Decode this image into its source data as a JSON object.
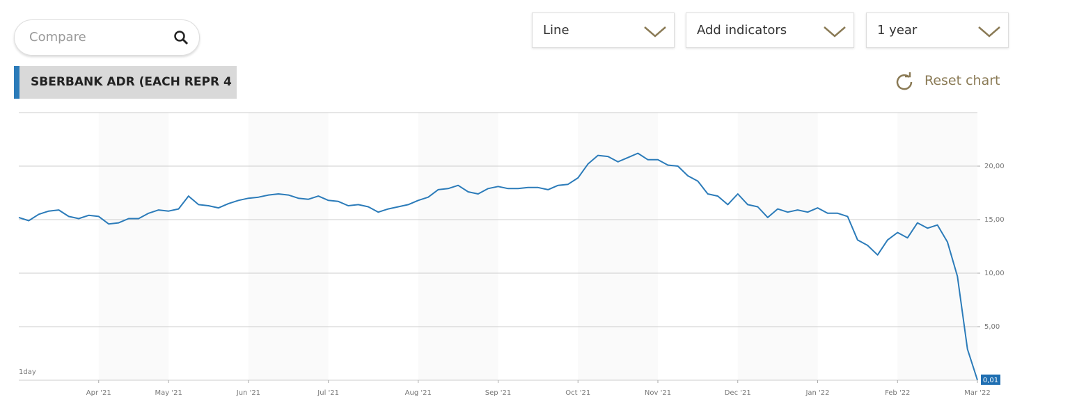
{
  "toolbar": {
    "compare_placeholder": "Compare",
    "dropdowns": [
      "Line",
      "Add indicators",
      "1 year"
    ]
  },
  "instrument_tab": "SBERBANK ADR (EACH REPR 4",
  "reset_label": "Reset chart",
  "chart_data": {
    "type": "line",
    "interval_label": "1day",
    "color": "#2b7bb9",
    "categories": [
      null,
      null,
      null,
      null,
      null,
      null,
      null,
      null,
      "Apr '21",
      null,
      null,
      null,
      null,
      null,
      null,
      "May '21",
      null,
      null,
      null,
      null,
      null,
      null,
      null,
      "Jun '21",
      null,
      null,
      null,
      null,
      null,
      null,
      null,
      "Jul '21",
      null,
      null,
      null,
      null,
      null,
      null,
      null,
      null,
      "Aug '21",
      null,
      null,
      null,
      null,
      null,
      null,
      null,
      "Sep '21",
      null,
      null,
      null,
      null,
      null,
      null,
      null,
      "Oct '21",
      null,
      null,
      null,
      null,
      null,
      null,
      null,
      "Nov '21",
      null,
      null,
      null,
      null,
      null,
      null,
      null,
      "Dec '21",
      null,
      null,
      null,
      null,
      null,
      null,
      null,
      "Jan '22",
      null,
      null,
      null,
      null,
      null,
      null,
      null,
      "Feb '22",
      null,
      null,
      null,
      null,
      null,
      null,
      null,
      "Mar '22"
    ],
    "values": [
      15.2,
      14.9,
      15.5,
      15.8,
      15.9,
      15.3,
      15.1,
      15.4,
      15.3,
      14.6,
      14.7,
      15.1,
      15.1,
      15.6,
      15.9,
      15.8,
      16.0,
      17.2,
      16.4,
      16.3,
      16.1,
      16.5,
      16.8,
      17.0,
      17.1,
      17.3,
      17.4,
      17.3,
      17.0,
      16.9,
      17.2,
      16.8,
      16.7,
      16.3,
      16.4,
      16.2,
      15.7,
      16.0,
      16.2,
      16.4,
      16.8,
      17.1,
      17.8,
      17.9,
      18.2,
      17.6,
      17.4,
      17.9,
      18.1,
      17.9,
      17.9,
      18.0,
      18.0,
      17.8,
      18.2,
      18.3,
      18.9,
      20.2,
      21.0,
      20.9,
      20.4,
      20.8,
      21.2,
      20.6,
      20.6,
      20.1,
      20.0,
      19.1,
      18.6,
      17.4,
      17.2,
      16.4,
      17.4,
      16.4,
      16.2,
      15.2,
      16.0,
      15.7,
      15.9,
      15.7,
      16.1,
      15.6,
      15.6,
      15.3,
      13.1,
      12.6,
      11.7,
      13.1,
      13.8,
      13.3,
      14.7,
      14.2,
      14.5,
      12.9,
      9.7,
      2.9,
      0.01
    ],
    "value_labels": [
      null,
      null,
      null,
      null,
      null,
      null,
      null,
      null,
      null,
      null,
      null,
      null,
      null,
      null,
      null,
      null,
      null,
      null,
      null,
      null,
      null,
      null,
      null,
      null,
      null,
      null,
      null,
      null,
      null,
      null,
      null,
      null,
      null,
      null,
      null,
      null,
      null,
      null,
      null,
      null,
      null,
      null,
      null,
      null,
      null,
      null,
      null,
      null,
      null,
      null,
      null,
      null,
      null,
      null,
      null,
      null,
      null,
      null,
      null,
      null,
      null,
      null,
      null,
      null,
      null,
      null,
      null,
      null,
      null,
      null,
      null,
      null,
      null,
      null,
      null,
      null,
      null,
      null,
      null,
      null,
      null,
      null,
      null,
      null,
      null,
      null,
      null,
      null,
      null,
      null,
      null,
      null,
      null,
      null,
      null,
      null,
      "0,01"
    ],
    "ylim": [
      0,
      25
    ],
    "yticks": [
      {
        "value": 5,
        "label": "5,00"
      },
      {
        "value": 10,
        "label": "10,00"
      },
      {
        "value": 15,
        "label": "15,00"
      },
      {
        "value": 20,
        "label": "20,00"
      }
    ],
    "grid": true
  }
}
